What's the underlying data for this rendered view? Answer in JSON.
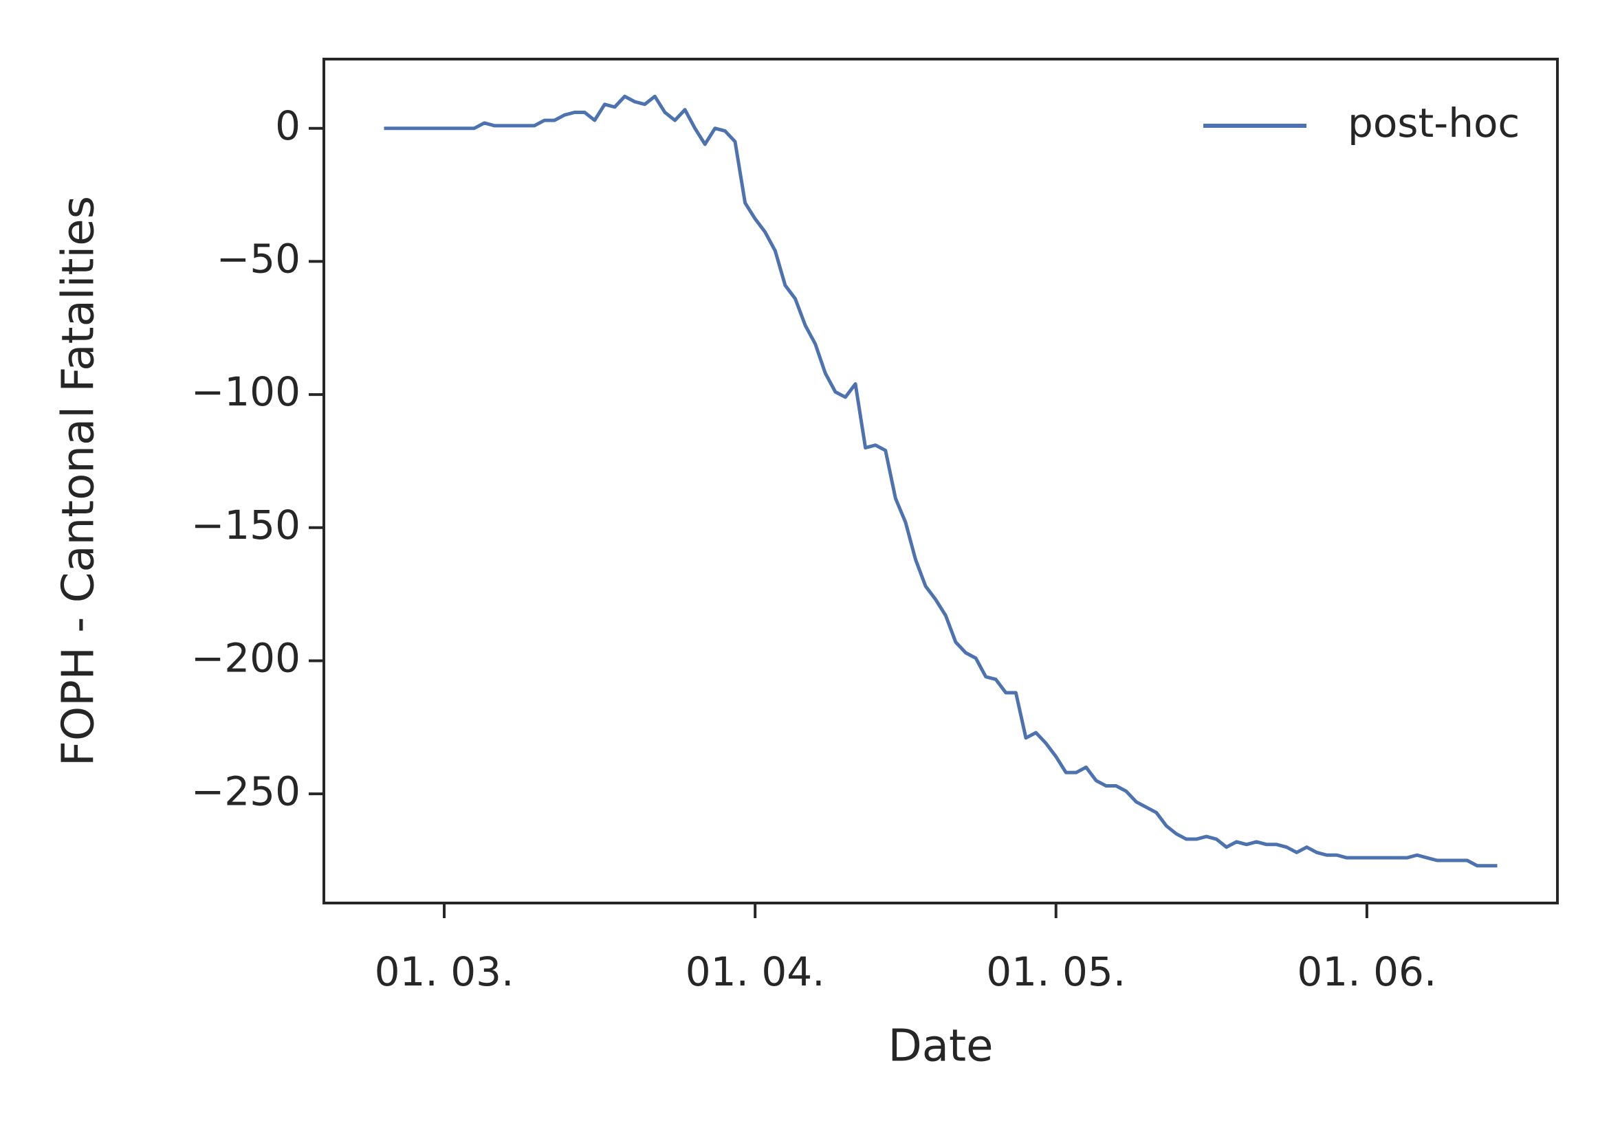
{
  "chart_data": {
    "type": "line",
    "xlabel": "Date",
    "ylabel": "FOPH - Cantonal Fatalities",
    "x": [
      "24. 02.",
      "25. 02.",
      "26. 02.",
      "27. 02.",
      "28. 02.",
      "29. 02.",
      "01. 03.",
      "02. 03.",
      "03. 03.",
      "04. 03.",
      "05. 03.",
      "06. 03.",
      "07. 03.",
      "08. 03.",
      "09. 03.",
      "10. 03.",
      "11. 03.",
      "12. 03.",
      "13. 03.",
      "14. 03.",
      "15. 03.",
      "16. 03.",
      "17. 03.",
      "18. 03.",
      "19. 03.",
      "20. 03.",
      "21. 03.",
      "22. 03.",
      "23. 03.",
      "24. 03.",
      "25. 03.",
      "26. 03.",
      "27. 03.",
      "28. 03.",
      "29. 03.",
      "30. 03.",
      "31. 03.",
      "01. 04.",
      "02. 04.",
      "03. 04.",
      "04. 04.",
      "05. 04.",
      "06. 04.",
      "07. 04.",
      "08. 04.",
      "09. 04.",
      "10. 04.",
      "11. 04.",
      "12. 04.",
      "13. 04.",
      "14. 04.",
      "15. 04.",
      "16. 04.",
      "17. 04.",
      "18. 04.",
      "19. 04.",
      "20. 04.",
      "21. 04.",
      "22. 04.",
      "23. 04.",
      "24. 04.",
      "25. 04.",
      "26. 04.",
      "27. 04.",
      "28. 04.",
      "29. 04.",
      "30. 04.",
      "01. 05.",
      "02. 05.",
      "03. 05.",
      "04. 05.",
      "05. 05.",
      "06. 05.",
      "07. 05.",
      "08. 05.",
      "09. 05.",
      "10. 05.",
      "11. 05.",
      "12. 05.",
      "13. 05.",
      "14. 05.",
      "15. 05.",
      "16. 05.",
      "17. 05.",
      "18. 05.",
      "19. 05.",
      "20. 05.",
      "21. 05.",
      "22. 05.",
      "23. 05.",
      "24. 05.",
      "25. 05.",
      "26. 05.",
      "27. 05.",
      "28. 05.",
      "29. 05.",
      "30. 05.",
      "31. 05.",
      "01. 06.",
      "02. 06.",
      "03. 06.",
      "04. 06.",
      "05. 06.",
      "06. 06.",
      "07. 06.",
      "08. 06.",
      "09. 06.",
      "10. 06.",
      "11. 06.",
      "12. 06.",
      "13. 06.",
      "14. 06."
    ],
    "series": [
      {
        "name": "post-hoc",
        "color": "#4c72b0",
        "values": [
          0,
          0,
          0,
          0,
          0,
          0,
          0,
          0,
          0,
          0,
          2,
          1,
          1,
          1,
          1,
          1,
          3,
          3,
          5,
          6,
          6,
          3,
          9,
          8,
          12,
          10,
          9,
          12,
          6,
          3,
          7,
          0,
          -6,
          0,
          -1,
          -5,
          -28,
          -34,
          -39,
          -46,
          -59,
          -64,
          -74,
          -81,
          -92,
          -99,
          -101,
          -96,
          -120,
          -119,
          -121,
          -139,
          -148,
          -162,
          -172,
          -177,
          -183,
          -193,
          -197,
          -199,
          -206,
          -207,
          -212,
          -212,
          -229,
          -227,
          -231,
          -236,
          -242,
          -242,
          -240,
          -245,
          -247,
          -247,
          -249,
          -253,
          -255,
          -257,
          -262,
          -265,
          -267,
          -267,
          -266,
          -267,
          -270,
          -268,
          -269,
          -268,
          -269,
          -269,
          -270,
          -272,
          -270,
          -272,
          -273,
          -273,
          -274,
          -274,
          -274,
          -274,
          -274,
          -274,
          -274,
          -273,
          -274,
          -275,
          -275,
          -275,
          -275,
          -277,
          -277,
          -277
        ]
      }
    ],
    "xlim": [
      "18. 02.",
      "20. 06."
    ],
    "xticks": [
      "01. 03.",
      "01. 04.",
      "01. 05.",
      "01. 06."
    ],
    "ylim": [
      -291,
      26
    ],
    "yticks": [
      {
        "value": 0,
        "label": "0"
      },
      {
        "value": -50,
        "label": "−50"
      },
      {
        "value": -100,
        "label": "−100"
      },
      {
        "value": -150,
        "label": "−150"
      },
      {
        "value": -200,
        "label": "−200"
      },
      {
        "value": -250,
        "label": "−250"
      }
    ],
    "legend": "upper right",
    "grid": false
  }
}
